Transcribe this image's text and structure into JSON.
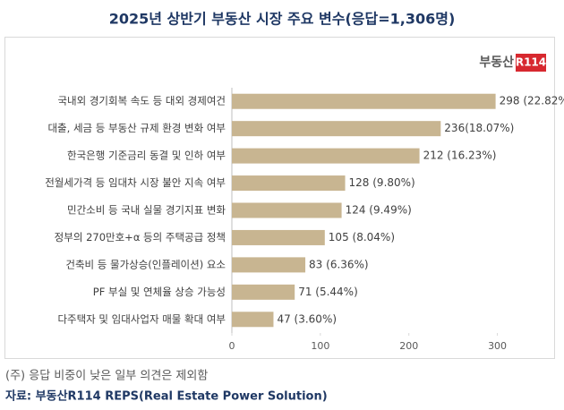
{
  "chart_data": {
    "type": "barh",
    "title": "2025년 상반기 부동산 시장 주요 변수(응답=1,306명)",
    "brand": "부동산",
    "brand_badge": "R114",
    "categories": [
      "국내외 경기회복 속도 등 대외 경제여건",
      "대출, 세금 등 부동산 규제 환경 변화 여부",
      "한국은행 기준금리 동결 및 인하 여부",
      "전월세가격 등 임대차 시장 불안 지속 여부",
      "민간소비 등 국내 실물 경기지표 변화",
      "정부의 270만호+α 등의 주택공급 정책",
      "건축비 등 물가상승(인플레이션) 요소",
      "PF 부실 및 연체율 상승 가능성",
      "다주택자 및 임대사업자 매물 확대 여부"
    ],
    "values": [
      298,
      236,
      212,
      128,
      124,
      105,
      83,
      71,
      47
    ],
    "value_labels": [
      "298 (22.82%)",
      "236(18.07%)",
      "212 (16.23%)",
      "128 (9.80%)",
      "124 (9.49%)",
      "105 (8.04%)",
      "83 (6.36%)",
      "71 (5.44%)",
      "47 (3.60%)"
    ],
    "color": "#c8b591",
    "xlim": [
      0,
      350
    ],
    "xticks": [
      0,
      100,
      200,
      300
    ],
    "note": "(주) 응답 비중이 낮은 일부 의견은 제외함",
    "source": "자료: 부동산R114 REPS(Real Estate Power Solution)"
  }
}
